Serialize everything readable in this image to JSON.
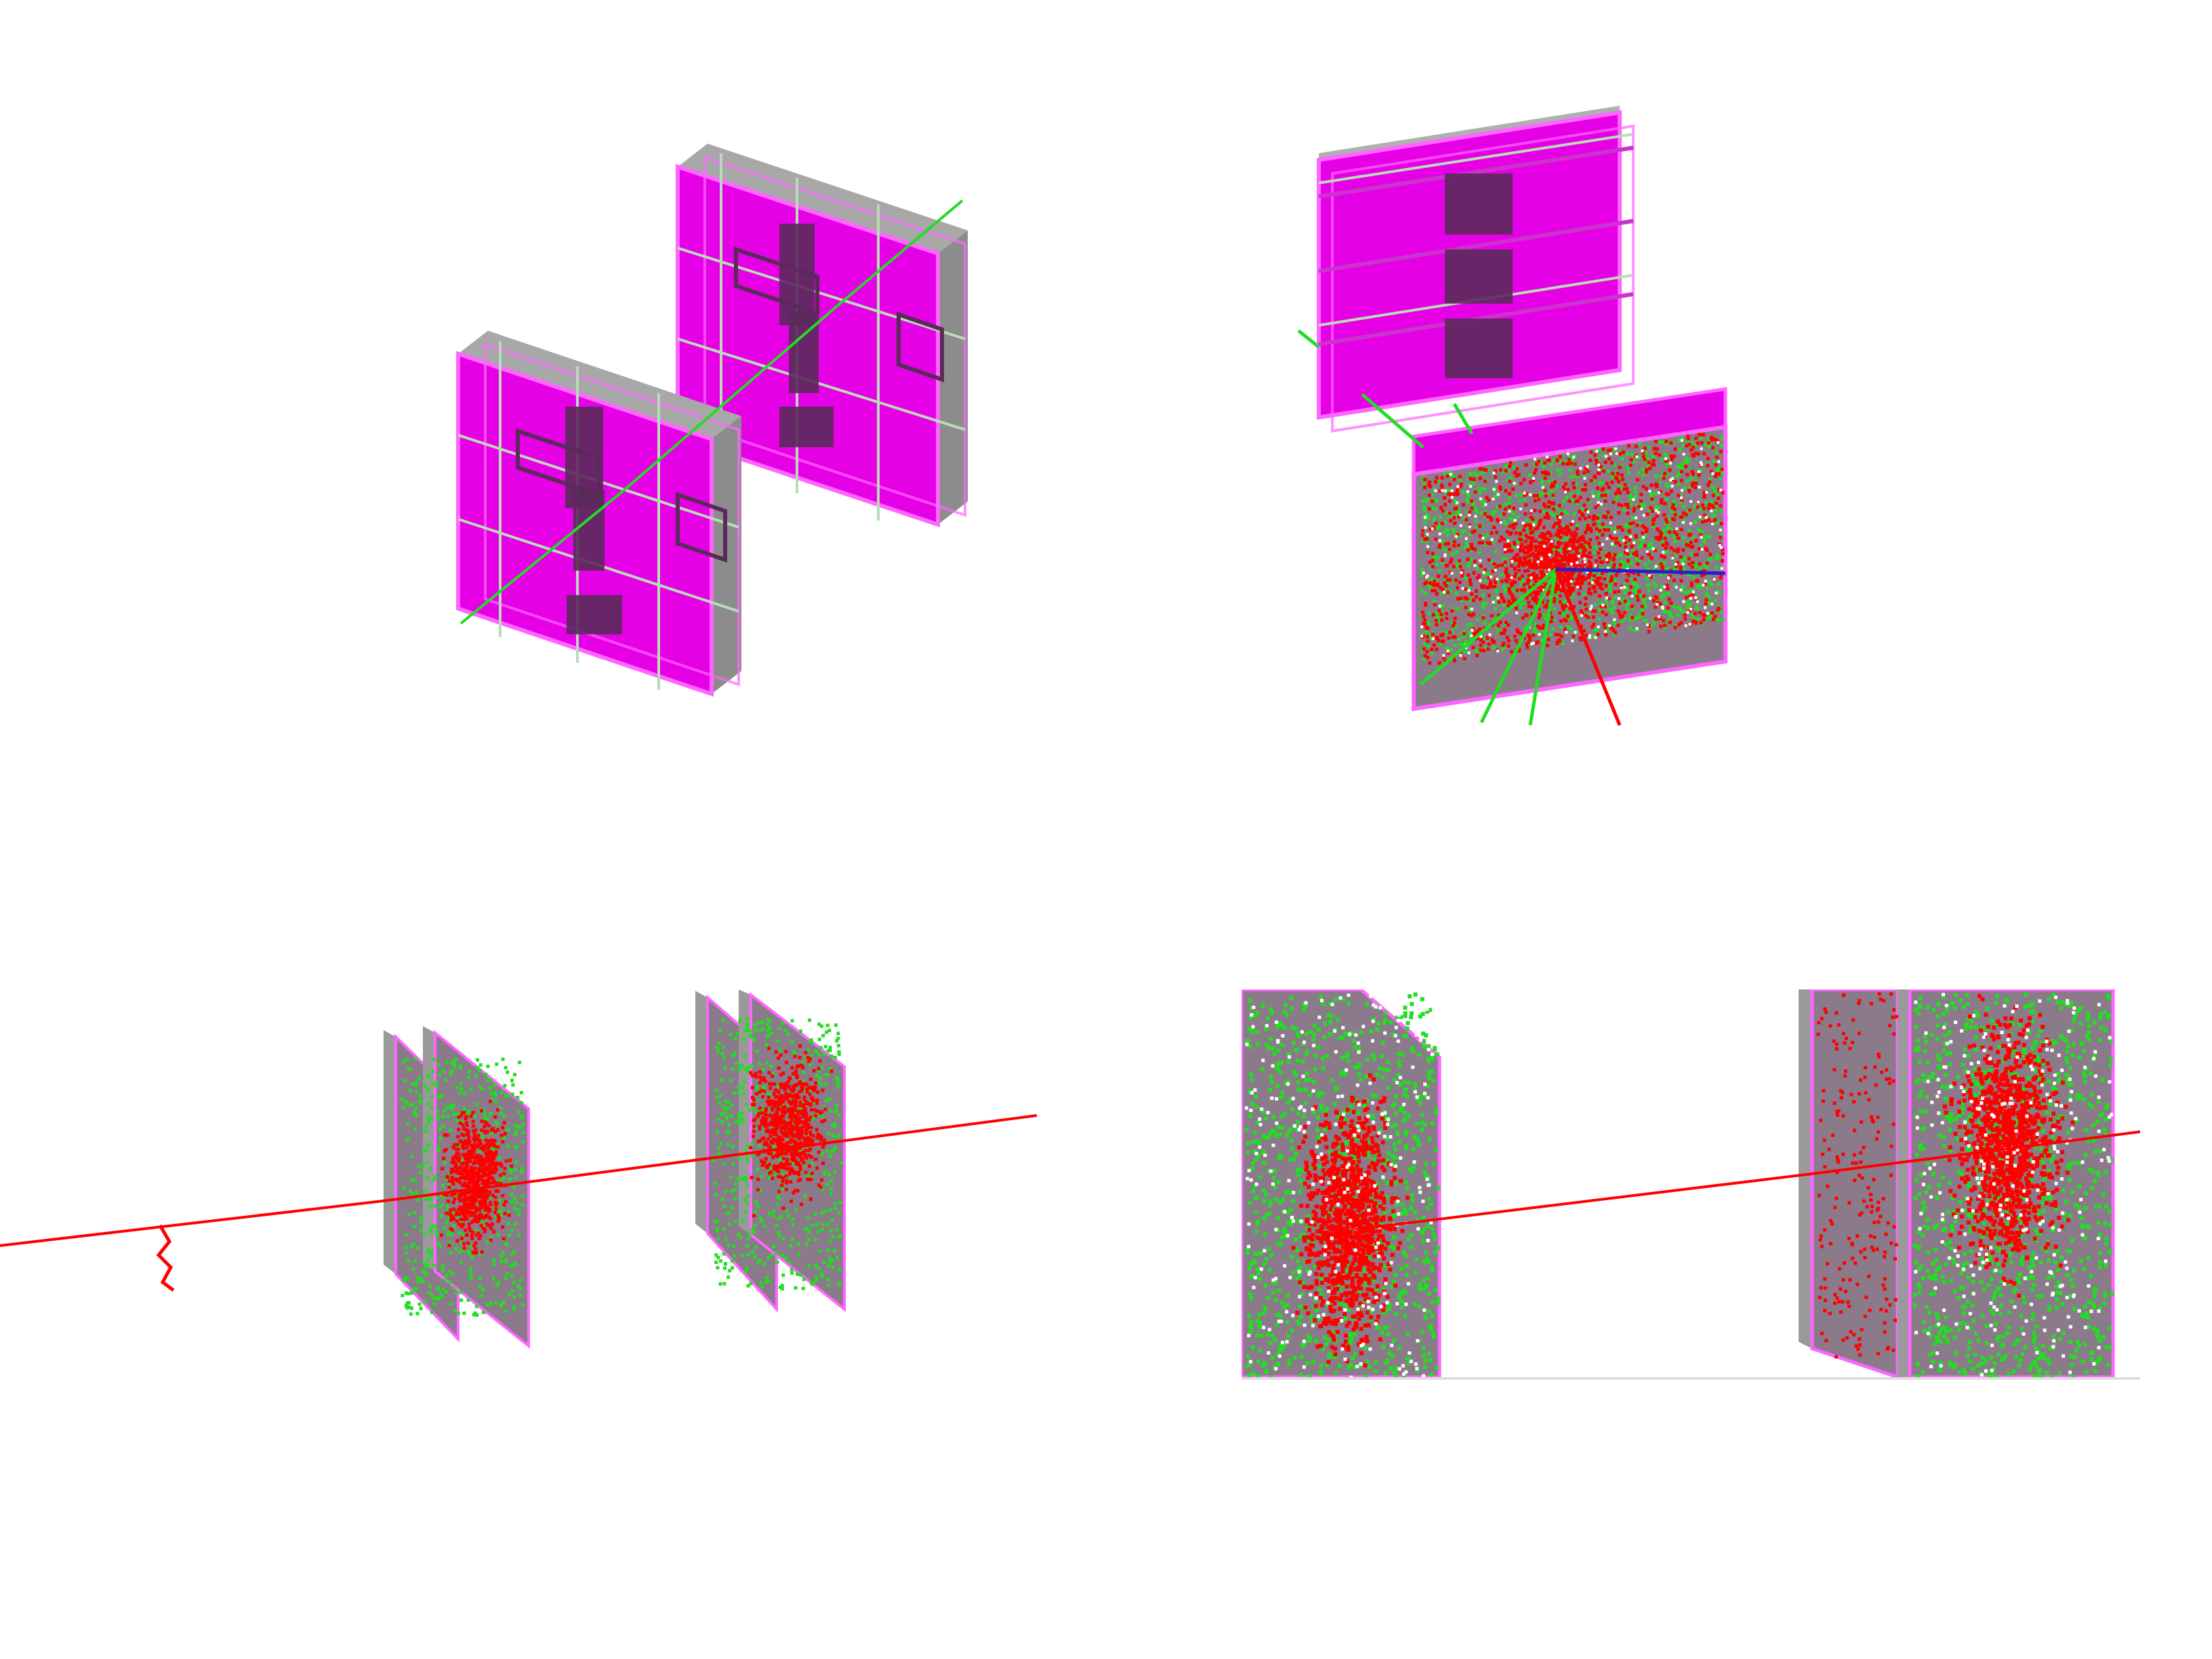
{
  "colors": {
    "background": "#ffffff",
    "detector_face": "#e600e6",
    "detector_edge": "#ff66ff",
    "detector_side": "#9a9a9a",
    "detector_dark": "#5a2a5a",
    "grid_line": "#b0d8b0",
    "active_face": "#8a7a8a",
    "track_red": "#ff0000",
    "track_green": "#22dd22",
    "track_blue": "#2222cc"
  },
  "panels": [
    {
      "id": "panel-top-left",
      "view": "detector-geometry-two-stations",
      "hits": false
    },
    {
      "id": "panel-top-right",
      "view": "detector-stations-with-shower",
      "hits": true
    },
    {
      "id": "panel-bottom-left",
      "view": "side-view-primary-track-with-hits",
      "hits": true
    },
    {
      "id": "panel-bottom-right",
      "view": "zoomed-side-view-primary-track",
      "hits": true
    }
  ]
}
